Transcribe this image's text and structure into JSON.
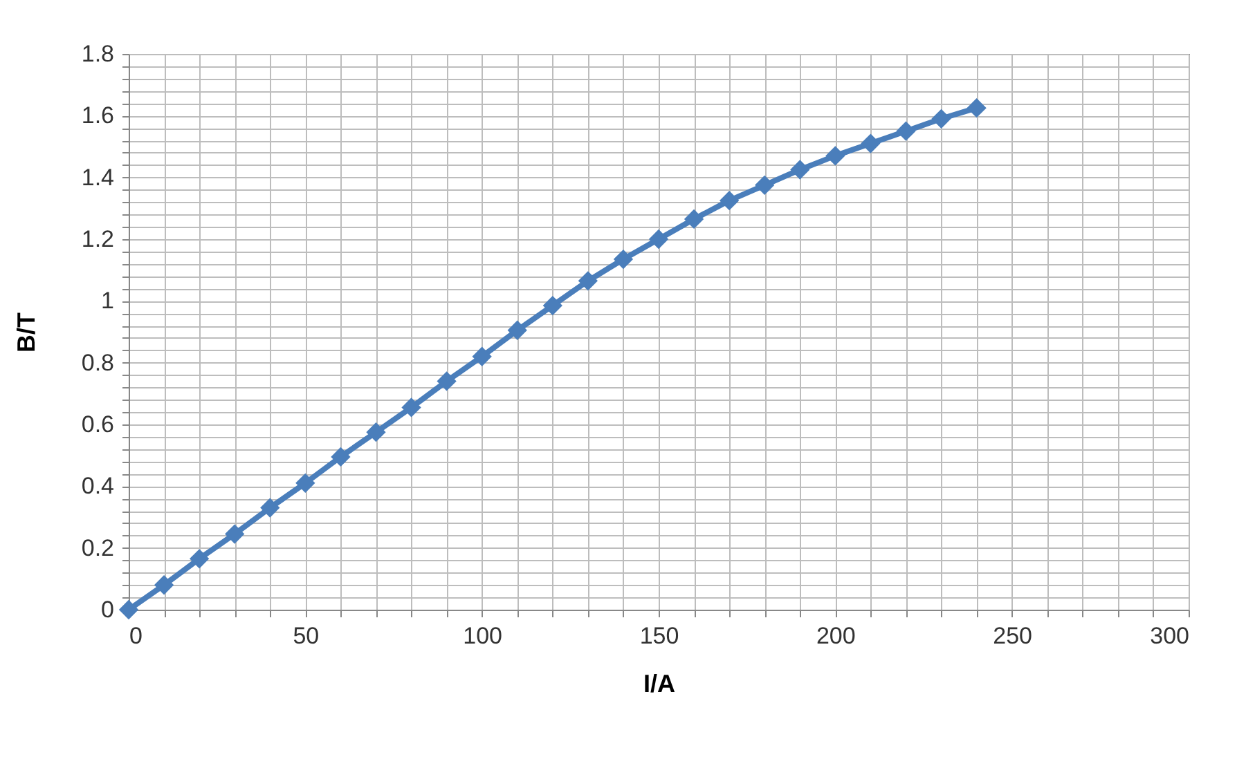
{
  "chart_data": {
    "type": "line",
    "xlabel": "I/A",
    "ylabel": "B/T",
    "x": [
      0,
      10,
      20,
      30,
      40,
      50,
      60,
      70,
      80,
      90,
      100,
      110,
      120,
      130,
      140,
      150,
      160,
      170,
      180,
      190,
      200,
      210,
      220,
      230,
      240
    ],
    "series": [
      {
        "color": "#4a7ebb",
        "values": [
          0,
          0.08,
          0.165,
          0.245,
          0.33,
          0.41,
          0.495,
          0.575,
          0.655,
          0.74,
          0.82,
          0.905,
          0.985,
          1.065,
          1.135,
          1.2,
          1.265,
          1.325,
          1.375,
          1.425,
          1.47,
          1.51,
          1.55,
          1.59,
          1.625
        ]
      }
    ],
    "xlim": [
      0,
      300
    ],
    "xticks": [
      0,
      {
        "value": 10,
        "label": null
      },
      {
        "value": 20,
        "label": null
      },
      {
        "value": 30,
        "label": null
      },
      {
        "value": 40,
        "label": null
      },
      50,
      {
        "value": 60,
        "label": null
      },
      {
        "value": 70,
        "label": null
      },
      {
        "value": 80,
        "label": null
      },
      {
        "value": 90,
        "label": null
      },
      100,
      {
        "value": 110,
        "label": null
      },
      {
        "value": 120,
        "label": null
      },
      {
        "value": 130,
        "label": null
      },
      {
        "value": 140,
        "label": null
      },
      150,
      {
        "value": 160,
        "label": null
      },
      {
        "value": 170,
        "label": null
      },
      {
        "value": 180,
        "label": null
      },
      {
        "value": 190,
        "label": null
      },
      200,
      {
        "value": 210,
        "label": null
      },
      {
        "value": 220,
        "label": null
      },
      {
        "value": 230,
        "label": null
      },
      {
        "value": 240,
        "label": null
      },
      250,
      {
        "value": 260,
        "label": null
      },
      {
        "value": 270,
        "label": null
      },
      {
        "value": 280,
        "label": null
      },
      {
        "value": 290,
        "label": null
      },
      300
    ],
    "ylim": [
      0,
      1.8
    ],
    "yticks": [
      0,
      {
        "value": 0.04,
        "label": null
      },
      {
        "value": 0.08,
        "label": null
      },
      {
        "value": 0.12,
        "label": null
      },
      {
        "value": 0.16,
        "label": null
      },
      0.2,
      {
        "value": 0.24,
        "label": null
      },
      {
        "value": 0.28,
        "label": null
      },
      {
        "value": 0.32,
        "label": null
      },
      {
        "value": 0.36,
        "label": null
      },
      0.4,
      {
        "value": 0.44,
        "label": null
      },
      {
        "value": 0.48,
        "label": null
      },
      {
        "value": 0.52,
        "label": null
      },
      {
        "value": 0.56,
        "label": null
      },
      0.6,
      {
        "value": 0.64,
        "label": null
      },
      {
        "value": 0.68,
        "label": null
      },
      {
        "value": 0.72,
        "label": null
      },
      {
        "value": 0.76,
        "label": null
      },
      0.8,
      {
        "value": 0.84,
        "label": null
      },
      {
        "value": 0.88,
        "label": null
      },
      {
        "value": 0.92,
        "label": null
      },
      {
        "value": 0.96,
        "label": null
      },
      1,
      {
        "value": 1.04,
        "label": null
      },
      {
        "value": 1.08,
        "label": null
      },
      {
        "value": 1.12,
        "label": null
      },
      {
        "value": 1.16,
        "label": null
      },
      1.2,
      {
        "value": 1.24,
        "label": null
      },
      {
        "value": 1.28,
        "label": null
      },
      {
        "value": 1.32,
        "label": null
      },
      {
        "value": 1.36,
        "label": null
      },
      1.4,
      {
        "value": 1.44,
        "label": null
      },
      {
        "value": 1.48,
        "label": null
      },
      {
        "value": 1.52,
        "label": null
      },
      {
        "value": 1.56,
        "label": null
      },
      1.6,
      {
        "value": 1.64,
        "label": null
      },
      {
        "value": 1.68,
        "label": null
      },
      {
        "value": 1.72,
        "label": null
      },
      {
        "value": 1.76,
        "label": null
      },
      1.8
    ],
    "grid": true,
    "marker": "diamond",
    "line_style": "solid"
  }
}
